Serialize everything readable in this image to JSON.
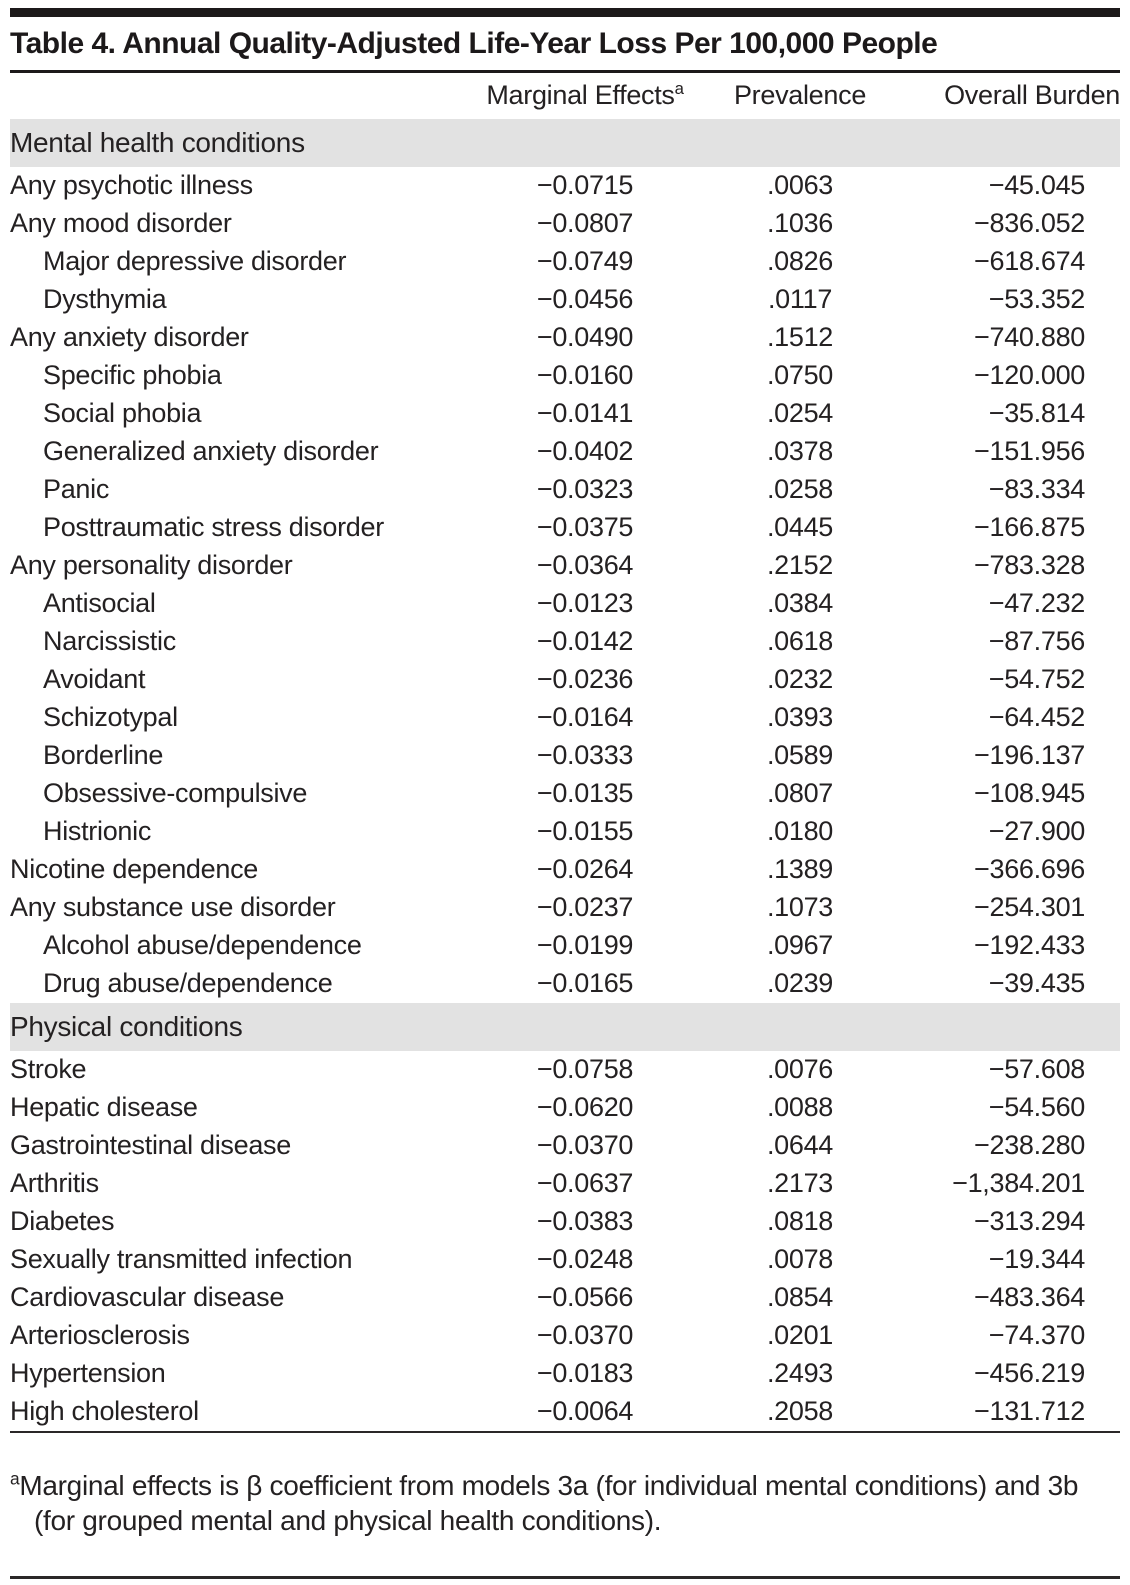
{
  "title": "Table 4. Annual Quality-Adjusted Life-Year Loss Per 100,000 People",
  "header": {
    "condition_col": "",
    "marginal_effects": "Marginal Effects",
    "marginal_effects_sup": "a",
    "prevalence": "Prevalence",
    "overall_burden": "Overall Burden"
  },
  "sections": [
    {
      "label": "Mental health conditions",
      "rows": [
        {
          "condition": "Any psychotic illness",
          "indent": false,
          "marginal_effects": "−0.0715",
          "prevalence": ".0063",
          "overall_burden": "−45.045"
        },
        {
          "condition": "Any mood disorder",
          "indent": false,
          "marginal_effects": "−0.0807",
          "prevalence": ".1036",
          "overall_burden": "−836.052"
        },
        {
          "condition": "Major depressive disorder",
          "indent": true,
          "marginal_effects": "−0.0749",
          "prevalence": ".0826",
          "overall_burden": "−618.674"
        },
        {
          "condition": "Dysthymia",
          "indent": true,
          "marginal_effects": "−0.0456",
          "prevalence": ".0117",
          "overall_burden": "−53.352"
        },
        {
          "condition": "Any anxiety disorder",
          "indent": false,
          "marginal_effects": "−0.0490",
          "prevalence": ".1512",
          "overall_burden": "−740.880"
        },
        {
          "condition": "Specific phobia",
          "indent": true,
          "marginal_effects": "−0.0160",
          "prevalence": ".0750",
          "overall_burden": "−120.000"
        },
        {
          "condition": "Social phobia",
          "indent": true,
          "marginal_effects": "−0.0141",
          "prevalence": ".0254",
          "overall_burden": "−35.814"
        },
        {
          "condition": "Generalized anxiety disorder",
          "indent": true,
          "marginal_effects": "−0.0402",
          "prevalence": ".0378",
          "overall_burden": "−151.956"
        },
        {
          "condition": "Panic",
          "indent": true,
          "marginal_effects": "−0.0323",
          "prevalence": ".0258",
          "overall_burden": "−83.334"
        },
        {
          "condition": "Posttraumatic stress disorder",
          "indent": true,
          "marginal_effects": "−0.0375",
          "prevalence": ".0445",
          "overall_burden": "−166.875"
        },
        {
          "condition": "Any personality disorder",
          "indent": false,
          "marginal_effects": "−0.0364",
          "prevalence": ".2152",
          "overall_burden": "−783.328"
        },
        {
          "condition": "Antisocial",
          "indent": true,
          "marginal_effects": "−0.0123",
          "prevalence": ".0384",
          "overall_burden": "−47.232"
        },
        {
          "condition": "Narcissistic",
          "indent": true,
          "marginal_effects": "−0.0142",
          "prevalence": ".0618",
          "overall_burden": "−87.756"
        },
        {
          "condition": "Avoidant",
          "indent": true,
          "marginal_effects": "−0.0236",
          "prevalence": ".0232",
          "overall_burden": "−54.752"
        },
        {
          "condition": "Schizotypal",
          "indent": true,
          "marginal_effects": "−0.0164",
          "prevalence": ".0393",
          "overall_burden": "−64.452"
        },
        {
          "condition": "Borderline",
          "indent": true,
          "marginal_effects": "−0.0333",
          "prevalence": ".0589",
          "overall_burden": "−196.137"
        },
        {
          "condition": "Obsessive-compulsive",
          "indent": true,
          "marginal_effects": "−0.0135",
          "prevalence": ".0807",
          "overall_burden": "−108.945"
        },
        {
          "condition": "Histrionic",
          "indent": true,
          "marginal_effects": "−0.0155",
          "prevalence": ".0180",
          "overall_burden": "−27.900"
        },
        {
          "condition": "Nicotine dependence",
          "indent": false,
          "marginal_effects": "−0.0264",
          "prevalence": ".1389",
          "overall_burden": "−366.696"
        },
        {
          "condition": "Any substance use disorder",
          "indent": false,
          "marginal_effects": "−0.0237",
          "prevalence": ".1073",
          "overall_burden": "−254.301"
        },
        {
          "condition": "Alcohol abuse/dependence",
          "indent": true,
          "marginal_effects": "−0.0199",
          "prevalence": ".0967",
          "overall_burden": "−192.433"
        },
        {
          "condition": "Drug abuse/dependence",
          "indent": true,
          "marginal_effects": "−0.0165",
          "prevalence": ".0239",
          "overall_burden": "−39.435"
        }
      ]
    },
    {
      "label": "Physical conditions",
      "rows": [
        {
          "condition": "Stroke",
          "indent": false,
          "marginal_effects": "−0.0758",
          "prevalence": ".0076",
          "overall_burden": "−57.608"
        },
        {
          "condition": "Hepatic disease",
          "indent": false,
          "marginal_effects": "−0.0620",
          "prevalence": ".0088",
          "overall_burden": "−54.560"
        },
        {
          "condition": "Gastrointestinal disease",
          "indent": false,
          "marginal_effects": "−0.0370",
          "prevalence": ".0644",
          "overall_burden": "−238.280"
        },
        {
          "condition": "Arthritis",
          "indent": false,
          "marginal_effects": "−0.0637",
          "prevalence": ".2173",
          "overall_burden": "−1,384.201"
        },
        {
          "condition": "Diabetes",
          "indent": false,
          "marginal_effects": "−0.0383",
          "prevalence": ".0818",
          "overall_burden": "−313.294"
        },
        {
          "condition": "Sexually transmitted infection",
          "indent": false,
          "marginal_effects": "−0.0248",
          "prevalence": ".0078",
          "overall_burden": "−19.344"
        },
        {
          "condition": "Cardiovascular disease",
          "indent": false,
          "marginal_effects": "−0.0566",
          "prevalence": ".0854",
          "overall_burden": "−483.364"
        },
        {
          "condition": "Arteriosclerosis",
          "indent": false,
          "marginal_effects": "−0.0370",
          "prevalence": ".0201",
          "overall_burden": "−74.370"
        },
        {
          "condition": "Hypertension",
          "indent": false,
          "marginal_effects": "−0.0183",
          "prevalence": ".2493",
          "overall_burden": "−456.219"
        },
        {
          "condition": "High cholesterol",
          "indent": false,
          "marginal_effects": "−0.0064",
          "prevalence": ".2058",
          "overall_burden": "−131.712"
        }
      ]
    }
  ],
  "footnote": {
    "marker": "a",
    "text": "Marginal effects is β coefficient from models 3a (for individual mental conditions) and 3b (for grouped mental and physical health conditions)."
  },
  "colors": {
    "section_band": "#e2e2e2",
    "text": "#242122",
    "rule": "#1c191a"
  }
}
